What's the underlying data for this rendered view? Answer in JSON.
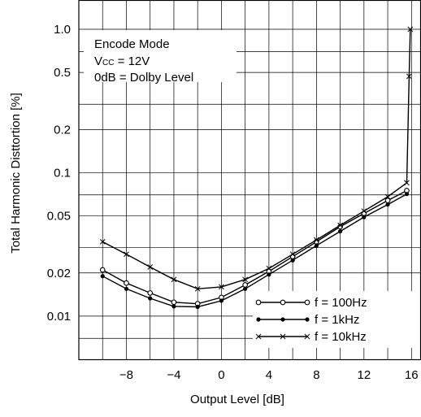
{
  "chart_data": {
    "type": "line",
    "xlabel": "Output Level [dB]",
    "ylabel": "Total Harmonic Disttortion [%]",
    "xlim": [
      -12,
      16.8
    ],
    "ylim": [
      0.005,
      1.6
    ],
    "yscale": "log",
    "grid": true,
    "x_ticks": [
      -8,
      -4,
      0,
      4,
      8,
      12,
      16
    ],
    "x_tick_labels": [
      "−8",
      "−4",
      "0",
      "4",
      "8",
      "12",
      "16"
    ],
    "y_ticks": [
      0.01,
      0.02,
      0.05,
      0.1,
      0.2,
      0.5,
      1.0
    ],
    "y_tick_labels": [
      "0.01",
      "0.02",
      "0.05",
      "0.1",
      "0.2",
      "0.5",
      "1.0"
    ],
    "y_gridlines": [
      0.007,
      0.01,
      0.02,
      0.03,
      0.05,
      0.07,
      0.1,
      0.2,
      0.3,
      0.5,
      0.7,
      1.0
    ],
    "annotation": {
      "line1": "Encode Mode",
      "line2_main": "V",
      "line2_sub": "CC",
      "line2_rest": " = 12V",
      "line3": "0dB = Dolby Level"
    },
    "legend_position": "bottom-right",
    "series": [
      {
        "name": "f = 100Hz",
        "marker": "open-circle",
        "x": [
          -10,
          -8,
          -6,
          -4,
          -2,
          0,
          2,
          4,
          6,
          8,
          10,
          12,
          14,
          15.6
        ],
        "y": [
          0.021,
          0.017,
          0.0145,
          0.0125,
          0.0122,
          0.0135,
          0.0165,
          0.0205,
          0.026,
          0.033,
          0.042,
          0.052,
          0.064,
          0.075
        ]
      },
      {
        "name": "f = 1kHz",
        "marker": "filled-dot",
        "x": [
          -10,
          -8,
          -6,
          -4,
          -2,
          0,
          2,
          4,
          6,
          8,
          10,
          12,
          14,
          15.6
        ],
        "y": [
          0.019,
          0.0155,
          0.0133,
          0.0117,
          0.0116,
          0.0128,
          0.0155,
          0.0195,
          0.0245,
          0.031,
          0.039,
          0.049,
          0.06,
          0.071
        ]
      },
      {
        "name": "f = 10kHz",
        "marker": "cross",
        "x": [
          -10,
          -8,
          -6,
          -4,
          -2,
          0,
          2,
          4,
          6,
          8,
          10,
          12,
          14,
          15.6,
          15.8,
          15.9
        ],
        "y": [
          0.033,
          0.027,
          0.022,
          0.018,
          0.0155,
          0.016,
          0.018,
          0.0215,
          0.027,
          0.034,
          0.043,
          0.054,
          0.068,
          0.085,
          0.47,
          1.0
        ]
      }
    ]
  }
}
